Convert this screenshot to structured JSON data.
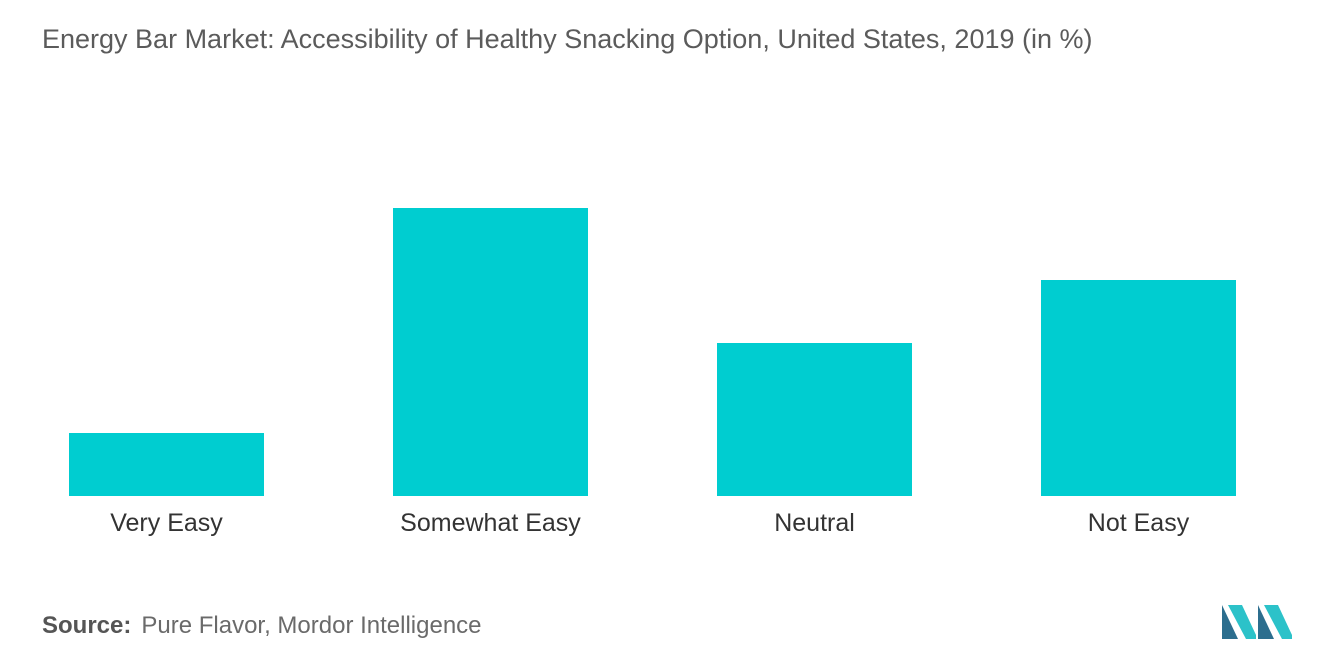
{
  "title": "Energy Bar Market: Accessibility of Healthy Snacking Option, United States, 2019 (in %)",
  "source": {
    "label": "Source:",
    "text": "Pure Flavor, Mordor Intelligence"
  },
  "logo": "mordor-intelligence-logo",
  "colors": {
    "bar": "#00cdd0",
    "logo_dark": "#2c6e8e",
    "logo_light": "#2cc2c9"
  },
  "chart_data": {
    "type": "bar",
    "title": "Energy Bar Market: Accessibility of Healthy Snacking Option, United States, 2019 (in %)",
    "categories": [
      "Very Easy",
      "Somewhat Easy",
      "Neutral",
      "Not Easy"
    ],
    "values": [
      7,
      32,
      17,
      24
    ],
    "ylim": [
      0,
      40
    ],
    "xlabel": "",
    "ylabel": "",
    "grid": false,
    "legend": "none"
  }
}
